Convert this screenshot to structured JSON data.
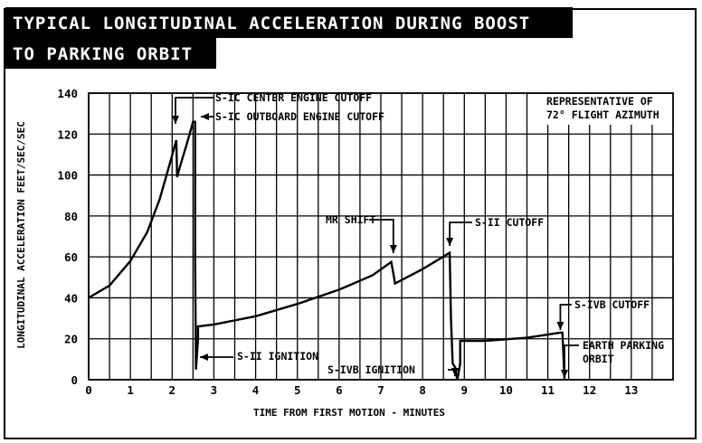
{
  "title": {
    "line1": "TYPICAL LONGITUDINAL ACCELERATION DURING BOOST",
    "line2": "TO PARKING ORBIT"
  },
  "chart_data": {
    "type": "line",
    "xlabel": "TIME FROM FIRST MOTION - MINUTES",
    "ylabel": "LONGITUDINAL ACCELERATION FEET/SEC/SEC",
    "xlim": [
      0,
      14
    ],
    "ylim": [
      0,
      140
    ],
    "x_ticks": [
      "0",
      "1",
      "2",
      "3",
      "4",
      "5",
      "6",
      "7",
      "8",
      "9",
      "10",
      "11",
      "12",
      "13"
    ],
    "y_ticks": [
      "0",
      "20",
      "40",
      "60",
      "80",
      "100",
      "120",
      "140"
    ],
    "grid": true,
    "note": {
      "line1": "REPRESENTATIVE OF",
      "line2": "72° FLIGHT AZIMUTH"
    },
    "series": [
      {
        "x": [
          0,
          0.5,
          1.0,
          1.4,
          1.7,
          1.95,
          2.1,
          2.12,
          2.2,
          2.35,
          2.5,
          2.55,
          2.55,
          2.57,
          2.62,
          2.62,
          3.0,
          4.0,
          5.0,
          6.0,
          6.8,
          7.25,
          7.3,
          7.34,
          8.0,
          8.65,
          8.68,
          8.72,
          8.78,
          8.83,
          8.85,
          8.9,
          8.9,
          9.5,
          10.5,
          11.3,
          11.35,
          11.4
        ],
        "y": [
          40,
          46,
          58,
          72,
          88,
          106,
          117,
          99,
          105,
          115,
          126,
          126,
          60,
          5,
          20,
          26,
          27,
          31,
          37,
          44,
          51,
          57.5,
          52,
          47,
          54,
          62,
          30,
          8,
          6,
          0,
          2,
          8,
          19,
          19,
          20.5,
          23,
          23,
          0
        ]
      }
    ],
    "annotations": [
      {
        "label": "S-IC CENTER ENGINE CUTOFF",
        "x": 2.08,
        "y": 119
      },
      {
        "label": "S-IC OUTBOARD ENGINE CUTOFF",
        "x": 2.52,
        "y": 126
      },
      {
        "label": "S-II IGNITION",
        "x": 2.6,
        "y": 11
      },
      {
        "label": "MR SHIFT",
        "x": 7.3,
        "y": 58
      },
      {
        "label": "S-II CUTOFF",
        "x": 8.65,
        "y": 62
      },
      {
        "label": "S-IVB IGNITION",
        "x": 8.8,
        "y": 0
      },
      {
        "label": "S-IVB CUTOFF",
        "x": 11.3,
        "y": 23
      },
      {
        "label": "EARTH PARKING ORBIT",
        "x": 11.55,
        "y": 0
      }
    ]
  }
}
